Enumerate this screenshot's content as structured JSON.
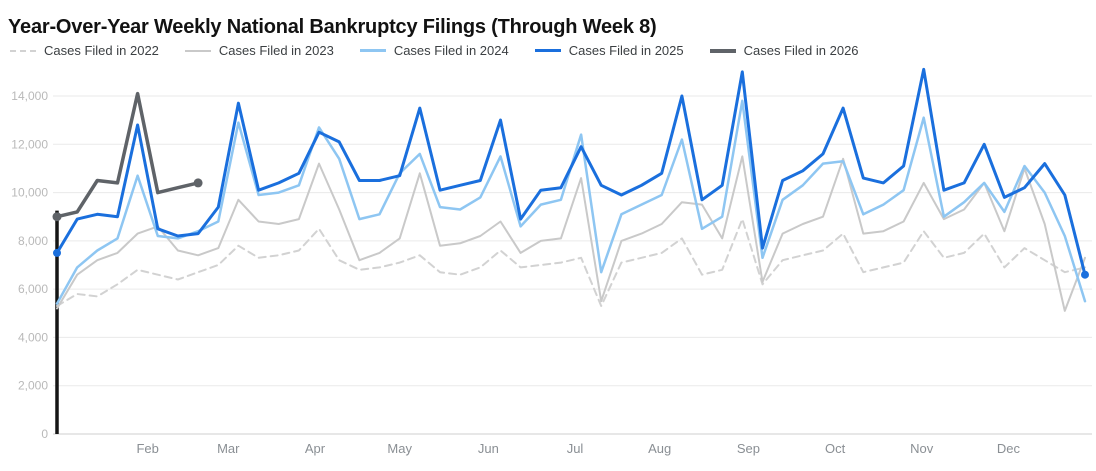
{
  "chart_data": {
    "type": "line",
    "title": "Year-Over-Year Weekly National Bankruptcy Filings (Through Week 8)",
    "x_unit": "week_of_year",
    "x_range": [
      1,
      52
    ],
    "ylim": [
      0,
      14000
    ],
    "grid": true,
    "legend_position": "top",
    "y_ticks": [
      0,
      2000,
      4000,
      6000,
      8000,
      10000,
      12000,
      14000
    ],
    "y_tick_labels": [
      "0",
      "2,000",
      "4,000",
      "6,000",
      "8,000",
      "10,000",
      "12,000",
      "14,000"
    ],
    "x_ticks": [
      {
        "label": "Feb",
        "week": 5.5
      },
      {
        "label": "Mar",
        "week": 9.5
      },
      {
        "label": "Apr",
        "week": 13.8
      },
      {
        "label": "May",
        "week": 18.0
      },
      {
        "label": "Jun",
        "week": 22.4
      },
      {
        "label": "Jul",
        "week": 26.7
      },
      {
        "label": "Aug",
        "week": 30.9
      },
      {
        "label": "Sep",
        "week": 35.3
      },
      {
        "label": "Oct",
        "week": 39.6
      },
      {
        "label": "Nov",
        "week": 43.9
      },
      {
        "label": "Dec",
        "week": 48.2
      }
    ],
    "series": [
      {
        "year": "2022",
        "name": "Cases Filed in 2022",
        "color": "#d2d2d2",
        "style": "dashed",
        "stroke_width": 2,
        "start_week": 1,
        "endpoint_dots": false,
        "values": [
          5300,
          5800,
          5700,
          6200,
          6800,
          6600,
          6400,
          6700,
          7000,
          7800,
          7300,
          7400,
          7600,
          8500,
          7200,
          6800,
          6900,
          7100,
          7400,
          6700,
          6600,
          6900,
          7600,
          6900,
          7000,
          7100,
          7300,
          5300,
          7100,
          7300,
          7500,
          8100,
          6600,
          6800,
          8900,
          6200,
          7200,
          7400,
          7600,
          8300,
          6700,
          6900,
          7100,
          8400,
          7300,
          7500,
          8300,
          6900,
          7700,
          7200,
          6700,
          6900
        ]
      },
      {
        "year": "2023",
        "name": "Cases Filed in 2023",
        "color": "#c9c9c9",
        "style": "solid",
        "stroke_width": 2,
        "start_week": 1,
        "endpoint_dots": false,
        "values": [
          5200,
          6600,
          7200,
          7500,
          8300,
          8600,
          7600,
          7400,
          7700,
          9700,
          8800,
          8700,
          8900,
          11200,
          9300,
          7200,
          7500,
          8100,
          10800,
          7800,
          7900,
          8200,
          8800,
          7500,
          8000,
          8100,
          10600,
          5500,
          8000,
          8300,
          8700,
          9600,
          9500,
          8100,
          11500,
          6300,
          8300,
          8700,
          9000,
          11400,
          8300,
          8400,
          8800,
          10400,
          8900,
          9300,
          10400,
          8400,
          11000,
          8700,
          5100,
          7300
        ]
      },
      {
        "year": "2024",
        "name": "Cases Filed in 2024",
        "color": "#8ec6f2",
        "style": "solid",
        "stroke_width": 2.5,
        "start_week": 1,
        "endpoint_dots": false,
        "values": [
          5400,
          6900,
          7600,
          8100,
          10700,
          8200,
          8100,
          8400,
          8800,
          12900,
          9900,
          10000,
          10300,
          12700,
          11400,
          8900,
          9100,
          10800,
          11600,
          9400,
          9300,
          9800,
          11500,
          8600,
          9500,
          9700,
          12400,
          6700,
          9100,
          9500,
          9900,
          12200,
          8500,
          9000,
          13800,
          7300,
          9700,
          10300,
          11200,
          11300,
          9100,
          9500,
          10100,
          13100,
          9000,
          9600,
          10400,
          9200,
          11100,
          10000,
          8200,
          5500
        ]
      },
      {
        "year": "2025",
        "name": "Cases Filed in 2025",
        "color": "#1a6fdd",
        "style": "solid",
        "stroke_width": 3,
        "start_week": 1,
        "endpoint_dots": true,
        "values": [
          7500,
          8900,
          9100,
          9000,
          12800,
          8500,
          8200,
          8300,
          9400,
          13700,
          10100,
          10400,
          10800,
          12500,
          12100,
          10500,
          10500,
          10700,
          13500,
          10100,
          10300,
          10500,
          13000,
          8900,
          10100,
          10200,
          11900,
          10300,
          9900,
          10300,
          10800,
          14000,
          9700,
          10300,
          15000,
          7700,
          10500,
          10900,
          11600,
          13500,
          10600,
          10400,
          11100,
          15100,
          10100,
          10400,
          12000,
          9800,
          10200,
          11200,
          9900,
          6600
        ]
      },
      {
        "year": "2026",
        "name": "Cases Filed in 2026",
        "color": "#5f6368",
        "style": "solid",
        "stroke_width": 3.5,
        "start_week": 1,
        "endpoint_dots": true,
        "values": [
          9000,
          9200,
          10500,
          10400,
          14100,
          10000,
          10200,
          10400
        ]
      }
    ]
  }
}
